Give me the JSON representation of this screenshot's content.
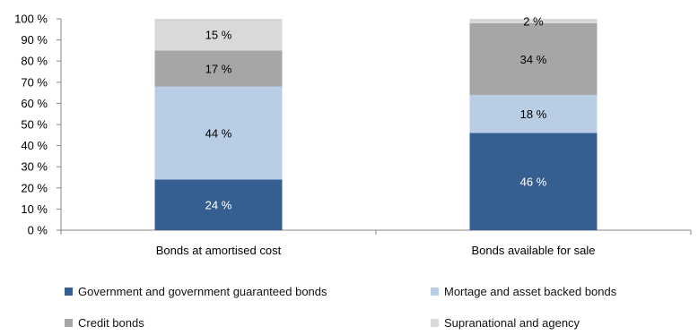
{
  "chart_data": {
    "type": "bar",
    "stacked": true,
    "percent": true,
    "categories": [
      "Bonds at amortised cost",
      "Bonds available for sale"
    ],
    "series": [
      {
        "name": "Government and government guaranteed bonds",
        "values": [
          24,
          46
        ],
        "labels": [
          "24 %",
          "46 %"
        ],
        "color": "#355f91",
        "label_color": "#ffffff"
      },
      {
        "name": "Mortage and asset backed bonds",
        "values": [
          44,
          18
        ],
        "labels": [
          "44 %",
          "18 %"
        ],
        "color": "#b9cde5",
        "label_color": "#000000"
      },
      {
        "name": "Credit bonds",
        "values": [
          17,
          34
        ],
        "labels": [
          "17 %",
          "34 %"
        ],
        "color": "#a6a6a6",
        "label_color": "#000000"
      },
      {
        "name": "Supranational and agency",
        "values": [
          15,
          2
        ],
        "labels": [
          "15 %",
          "2 %"
        ],
        "color": "#d9d9d9",
        "label_color": "#000000"
      }
    ],
    "ylim": [
      0,
      100
    ],
    "yticks": [
      "0 %",
      "10 %",
      "20 %",
      "30 %",
      "40 %",
      "50 %",
      "60 %",
      "70 %",
      "80 %",
      "90 %",
      "100 %"
    ],
    "grid": false,
    "legend_position": "bottom"
  }
}
